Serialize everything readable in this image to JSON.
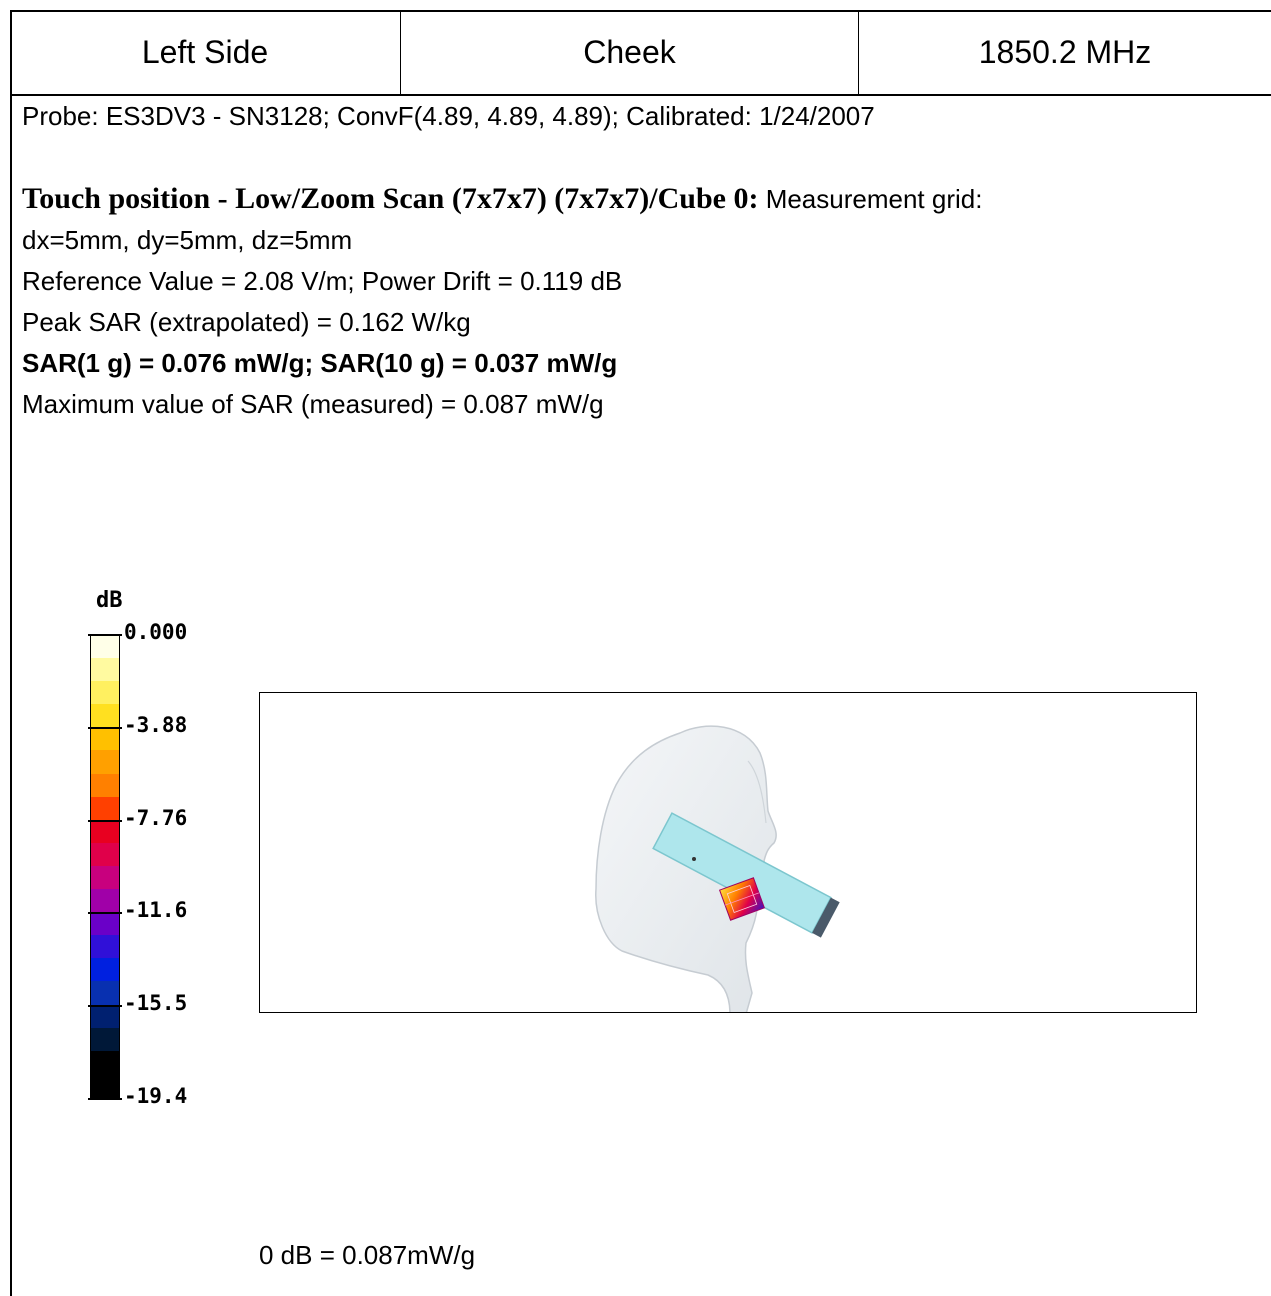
{
  "header": {
    "side": "Left Side",
    "position": "Cheek",
    "frequency": "1850.2 MHz"
  },
  "probe": "Probe: ES3DV3 - SN3128; ConvF(4.89, 4.89, 4.89); Calibrated: 1/24/2007",
  "scan": {
    "title": "Touch position - Low/Zoom Scan (7x7x7) (7x7x7)/Cube 0:",
    "grid_label": " Measurement grid:",
    "grid_values": "dx=5mm, dy=5mm, dz=5mm",
    "reference": "Reference Value = 2.08 V/m; Power Drift = 0.119 dB",
    "peak": "Peak SAR (extrapolated) = 0.162 W/kg",
    "sar": "SAR(1 g) = 0.076 mW/g; SAR(10 g) = 0.037 mW/g",
    "max": "Maximum value of SAR (measured) = 0.087 mW/g"
  },
  "colorbar": {
    "unit": "dB",
    "labels": [
      "0.000",
      "-3.88",
      "-7.76",
      "-11.6",
      "-15.5",
      "-19.4"
    ],
    "colors": [
      "#ffffe8",
      "#fffaa0",
      "#fff060",
      "#ffe020",
      "#ffc000",
      "#ffa000",
      "#ff8000",
      "#ff4000",
      "#e80020",
      "#e0004a",
      "#c8007e",
      "#a000a8",
      "#6a00c8",
      "#3010d8",
      "#0020e0",
      "#0830b0",
      "#002070",
      "#001838",
      "#000000",
      "#000000"
    ]
  },
  "reference_note": "0 dB = 0.087mW/g"
}
